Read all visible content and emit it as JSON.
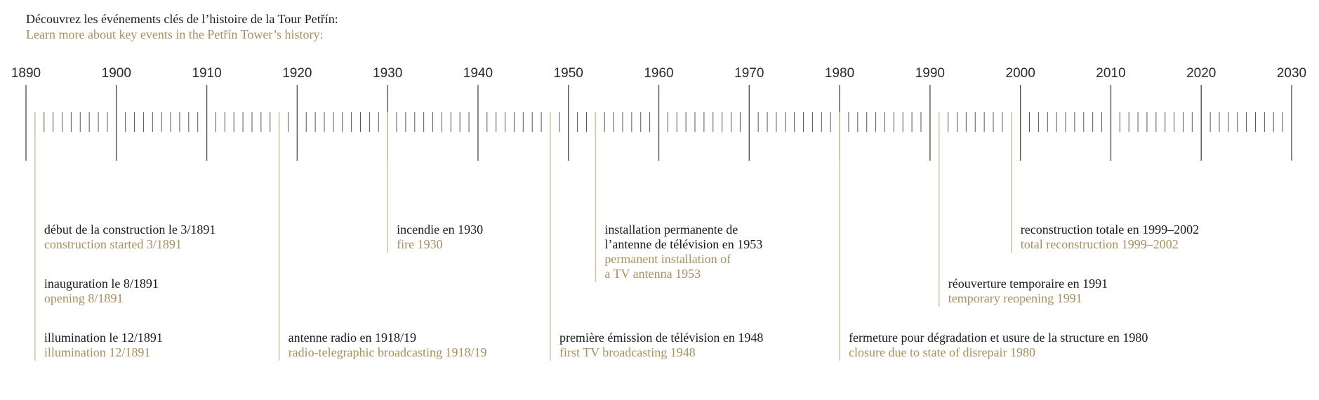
{
  "header": {
    "title_fr": "Découvrez les événements clés de l’histoire de la Tour Petřín:",
    "title_en": "Learn more about key events in the Petřín Tower’s history:"
  },
  "colors": {
    "ink": "#1a1a1a",
    "gold": "#a8905a",
    "axis": "#555555",
    "event_line": "#cfc3a3"
  },
  "chart_data": {
    "type": "timeline",
    "axis": {
      "start": 1890,
      "end": 2030,
      "major_step": 10,
      "minor_step": 1
    },
    "year_labels": [
      "1890",
      "1900",
      "1910",
      "1920",
      "1930",
      "1940",
      "1950",
      "1960",
      "1970",
      "1980",
      "1990",
      "2000",
      "2010",
      "2020",
      "2030"
    ],
    "events": [
      {
        "year": 1891.0,
        "fr": [
          "début de la construction le 3/1891"
        ],
        "en": [
          "construction started 3/1891"
        ],
        "row": 1
      },
      {
        "year": 1891.0,
        "fr": [
          "inauguration le 8/1891"
        ],
        "en": [
          "opening 8/1891"
        ],
        "row": 2
      },
      {
        "year": 1891.0,
        "fr": [
          "illumination le 12/1891"
        ],
        "en": [
          "illumination 12/1891"
        ],
        "row": 3
      },
      {
        "year": 1918.0,
        "fr": [
          "antenne radio en 1918/19"
        ],
        "en": [
          "radio-telegraphic broadcasting 1918/19"
        ],
        "row": 3
      },
      {
        "year": 1930.0,
        "fr": [
          "incendie en 1930"
        ],
        "en": [
          "fire 1930"
        ],
        "row": 1
      },
      {
        "year": 1948.0,
        "fr": [
          "première émission de télévision en 1948"
        ],
        "en": [
          "first TV broadcasting 1948"
        ],
        "row": 3
      },
      {
        "year": 1953.0,
        "fr": [
          "installation permanente de",
          "l’antenne de télévision en 1953"
        ],
        "en": [
          "permanent installation of",
          "a TV antenna 1953"
        ],
        "row": 1
      },
      {
        "year": 1980.0,
        "fr": [
          "fermeture pour dégradation et usure de la structure en 1980"
        ],
        "en": [
          "closure due to state of disrepair 1980"
        ],
        "row": 3
      },
      {
        "year": 1991.0,
        "fr": [
          "réouverture temporaire en 1991"
        ],
        "en": [
          "temporary reopening 1991"
        ],
        "row": 2
      },
      {
        "year": 1999.0,
        "fr": [
          "reconstruction totale en 1999–2002"
        ],
        "en": [
          "total reconstruction 1999–2002"
        ],
        "row": 1
      }
    ]
  }
}
